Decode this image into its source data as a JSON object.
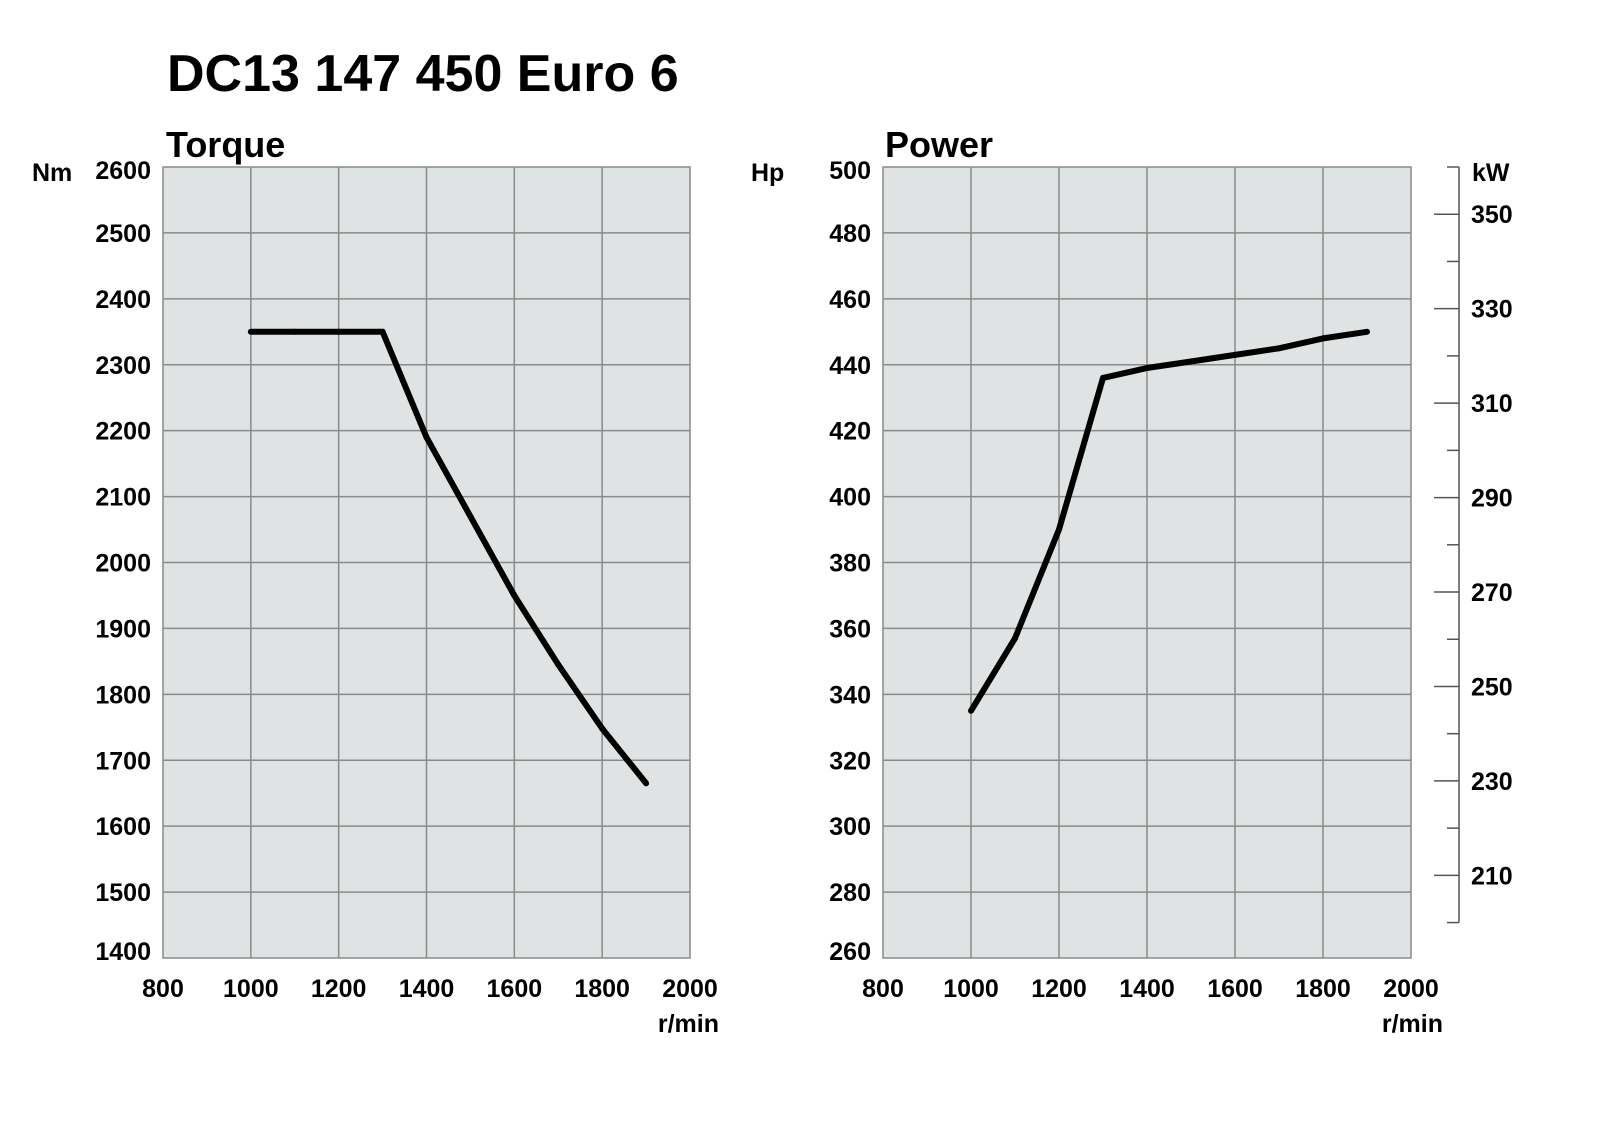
{
  "page": {
    "title": "DC13 147 450 Euro 6"
  },
  "colors": {
    "plot_background": "#dfe3e4",
    "grid": "#8a8a8a",
    "curve": "#000000",
    "text": "#000000"
  },
  "chart_data": [
    {
      "type": "line",
      "title": "Torque",
      "xlabel": "r/min",
      "ylabel": "Nm",
      "xlim": [
        800,
        2000
      ],
      "ylim": [
        1400,
        2600
      ],
      "x_ticks": [
        "800",
        "1000",
        "1200",
        "1400",
        "1600",
        "1800",
        "2000"
      ],
      "y_ticks": [
        "1400",
        "1500",
        "1600",
        "1700",
        "1800",
        "1900",
        "2000",
        "2100",
        "2200",
        "2300",
        "2400",
        "2500",
        "2600"
      ],
      "grid": true,
      "series": [
        {
          "x": [
            1000,
            1100,
            1200,
            1300,
            1350,
            1400,
            1500,
            1600,
            1700,
            1800,
            1900
          ],
          "values": [
            2350,
            2350,
            2350,
            2350,
            2270,
            2190,
            2070,
            1950,
            1845,
            1748,
            1665
          ]
        }
      ]
    },
    {
      "type": "line",
      "title": "Power",
      "xlabel": "r/min",
      "ylabel": "Hp",
      "y2label": "kW",
      "xlim": [
        800,
        2000
      ],
      "ylim": [
        260,
        500
      ],
      "y2lim": [
        192.5,
        360
      ],
      "x_ticks": [
        "800",
        "1000",
        "1200",
        "1400",
        "1600",
        "1800",
        "2000"
      ],
      "y_ticks": [
        "260",
        "280",
        "300",
        "320",
        "340",
        "360",
        "380",
        "400",
        "420",
        "440",
        "460",
        "480",
        "500"
      ],
      "y2_ticks": [
        "210",
        "230",
        "250",
        "270",
        "290",
        "310",
        "330",
        "350"
      ],
      "grid": true,
      "series": [
        {
          "x": [
            1000,
            1100,
            1200,
            1300,
            1400,
            1500,
            1600,
            1700,
            1800,
            1900
          ],
          "values": [
            335,
            357,
            390,
            436,
            439,
            441,
            443,
            445,
            448,
            450
          ]
        }
      ]
    }
  ]
}
